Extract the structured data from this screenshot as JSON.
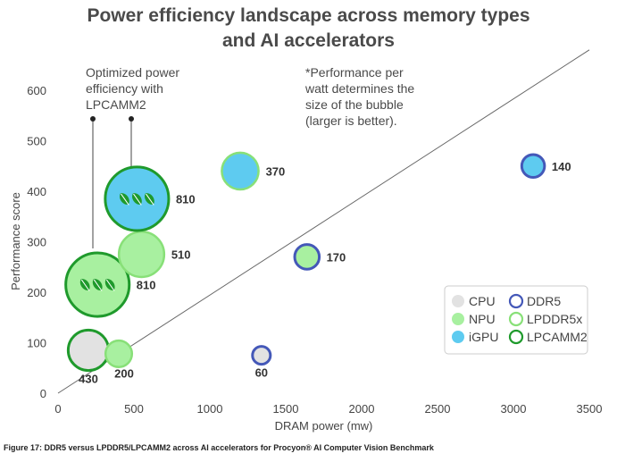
{
  "chart_data": {
    "type": "scatter",
    "title_lines": [
      "Power efficiency landscape across memory types",
      "and AI accelerators"
    ],
    "xlabel": "DRAM power (mw)",
    "ylabel": "Performance score",
    "xlim": [
      0,
      3500
    ],
    "ylim": [
      0,
      600
    ],
    "xticks": [
      0,
      500,
      1000,
      1500,
      2000,
      2500,
      3000,
      3500
    ],
    "yticks": [
      0,
      100,
      200,
      300,
      400,
      500,
      600
    ],
    "grid": false,
    "reference_line": {
      "from": [
        0,
        0
      ],
      "to": [
        3500,
        680
      ]
    },
    "legend_position": "bottom-right",
    "legend": {
      "accelerators": [
        {
          "name": "CPU",
          "color": "#e2e2e2"
        },
        {
          "name": "NPU",
          "color": "#a8f0a0"
        },
        {
          "name": "iGPU",
          "color": "#5ecbf0"
        }
      ],
      "memory": [
        {
          "name": "DDR5",
          "color": "#4458b8"
        },
        {
          "name": "LPDDR5x",
          "color": "#88e078"
        },
        {
          "name": "LPCAMM2",
          "color": "#1f9a2c"
        }
      ]
    },
    "points": [
      {
        "accelerator": "CPU",
        "memory": "LPCAMM2",
        "x": 200,
        "y": 85,
        "efficiency": 430,
        "label": "430"
      },
      {
        "accelerator": "NPU",
        "memory": "LPDDR5x",
        "x": 400,
        "y": 78,
        "efficiency": 200,
        "label": "200"
      },
      {
        "accelerator": "NPU",
        "memory": "LPCAMM2",
        "x": 260,
        "y": 215,
        "efficiency": 810,
        "label": "810",
        "leaf": true
      },
      {
        "accelerator": "NPU",
        "memory": "LPDDR5x",
        "x": 550,
        "y": 275,
        "efficiency": 510,
        "label": "510"
      },
      {
        "accelerator": "iGPU",
        "memory": "LPCAMM2",
        "x": 520,
        "y": 385,
        "efficiency": 810,
        "label": "810",
        "leaf": true
      },
      {
        "accelerator": "iGPU",
        "memory": "LPDDR5x",
        "x": 1200,
        "y": 440,
        "efficiency": 370,
        "label": "370"
      },
      {
        "accelerator": "NPU",
        "memory": "DDR5",
        "x": 1640,
        "y": 270,
        "efficiency": 170,
        "label": "170"
      },
      {
        "accelerator": "CPU",
        "memory": "DDR5",
        "x": 1340,
        "y": 75,
        "efficiency": 60,
        "label": "60"
      },
      {
        "accelerator": "iGPU",
        "memory": "DDR5",
        "x": 3130,
        "y": 450,
        "efficiency": 140,
        "label": "140"
      }
    ],
    "annotations": [
      "Optimized power efficiency with LPCAMM2",
      "*Performance per watt determines the size of the bubble (larger is better)."
    ]
  },
  "notes": {
    "optimized": [
      "Optimized power",
      "efficiency with",
      "LPCAMM2"
    ],
    "bubble": [
      "*Performance per",
      "watt determines the",
      "size of the bubble",
      "(larger is better)."
    ]
  },
  "caption": "Figure 17: DDR5 versus LPDDR5/LPCAMM2 across AI accelerators for Procyon® AI Computer Vision Benchmark"
}
